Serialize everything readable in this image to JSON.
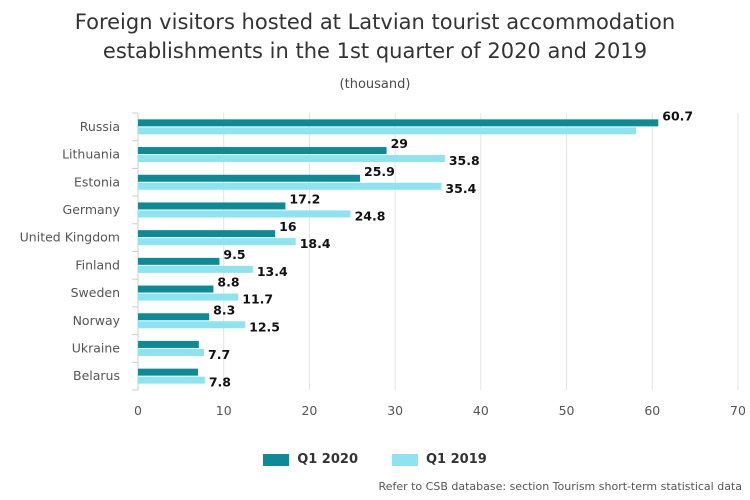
{
  "chart_data": {
    "type": "bar",
    "orientation": "horizontal",
    "title": "Foreign visitors hosted at Latvian tourist accommodation establishments in the 1st quarter of 2020 and 2019",
    "subtitle": "(thousand)",
    "categories": [
      "Russia",
      "Lithuania",
      "Estonia",
      "Germany",
      "United Kingdom",
      "Finland",
      "Sweden",
      "Norway",
      "Ukraine",
      "Belarus"
    ],
    "series": [
      {
        "name": "Q1 2020",
        "color": "#0e8a96",
        "values": [
          60.7,
          29,
          25.9,
          17.2,
          16,
          9.5,
          8.8,
          8.3,
          7.1,
          7
        ],
        "labels": [
          "60.7",
          "29",
          "25.9",
          "17.2",
          "16",
          "9.5",
          "8.8",
          "8.3",
          "",
          ""
        ]
      },
      {
        "name": "Q1 2019",
        "color": "#8ee3f0",
        "values": [
          58.1,
          35.8,
          35.4,
          24.8,
          18.4,
          13.4,
          11.7,
          12.5,
          7.7,
          7.8
        ],
        "labels": [
          "",
          "35.8",
          "35.4",
          "24.8",
          "18.4",
          "13.4",
          "11.7",
          "12.5",
          "7.7",
          "7.8"
        ]
      }
    ],
    "xlim": [
      0,
      70
    ],
    "xticks": [
      0,
      10,
      20,
      30,
      40,
      50,
      60,
      70
    ],
    "grid": true,
    "legend": "bottom-center"
  },
  "source_note": "Refer to CSB database: section Tourism short-term statistical data"
}
